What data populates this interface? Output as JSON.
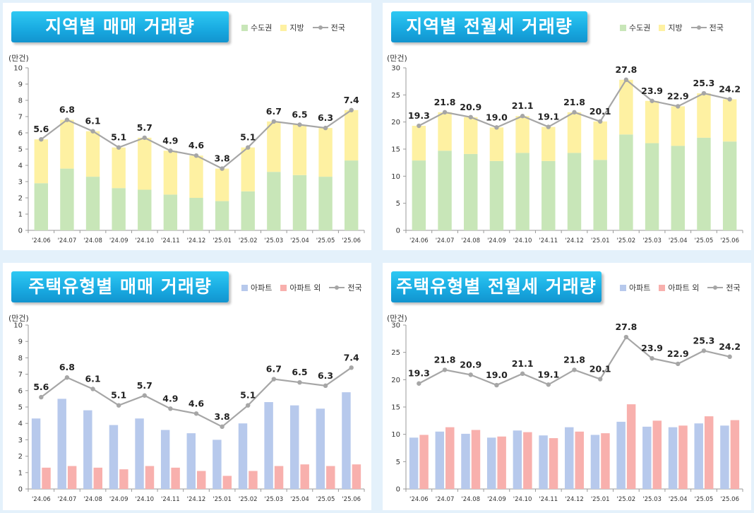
{
  "colors": {
    "metro": "#c8e6b8",
    "region": "#fef1a2",
    "apt": "#b7c9ec",
    "non_apt": "#f8b0ad",
    "national": "#a6a6a6"
  },
  "panels": [
    {
      "title": "지역별 매매 거래량",
      "unit": "(만건)",
      "legend": [
        "수도권",
        "지방",
        "전국"
      ]
    },
    {
      "title": "지역별 전월세 거래량",
      "unit": "(만건)",
      "legend": [
        "수도권",
        "지방",
        "전국"
      ]
    },
    {
      "title": "주택유형별 매매 거래량",
      "unit": "(만건)",
      "legend": [
        "아파트",
        "아파트 외",
        "전국"
      ]
    },
    {
      "title": "주택유형별 전월세 거래량",
      "unit": "(만건)",
      "legend": [
        "아파트",
        "아파트 외",
        "전국"
      ]
    }
  ],
  "chart_data": [
    {
      "type": "bar",
      "stacked": true,
      "title": "지역별 매매 거래량",
      "ylabel": "(만건)",
      "categories": [
        "'24.06",
        "'24.07",
        "'24.08",
        "'24.09",
        "'24.10",
        "'24.11",
        "'24.12",
        "'25.01",
        "'25.02",
        "'25.03",
        "'25.04",
        "'25.05",
        "'25.06"
      ],
      "ylim": [
        0,
        10
      ],
      "yticks": [
        0,
        1,
        2,
        3,
        4,
        5,
        6,
        7,
        8,
        9,
        10
      ],
      "series": [
        {
          "name": "수도권",
          "values": [
            2.9,
            3.8,
            3.3,
            2.6,
            2.5,
            2.2,
            2.0,
            1.8,
            2.4,
            3.6,
            3.4,
            3.3,
            4.3
          ]
        },
        {
          "name": "지방",
          "values": [
            2.7,
            3.0,
            2.8,
            2.5,
            3.2,
            2.7,
            2.6,
            2.0,
            2.7,
            3.1,
            3.1,
            3.0,
            3.1
          ]
        }
      ],
      "line": {
        "name": "전국",
        "values": [
          5.6,
          6.8,
          6.1,
          5.1,
          5.7,
          4.9,
          4.6,
          3.8,
          5.1,
          6.7,
          6.5,
          6.3,
          7.4
        ],
        "labels": [
          "5.6",
          "6.8",
          "6.1",
          "5.1",
          "5.7",
          "4.9",
          "4.6",
          "3.8",
          "5.1",
          "6.7",
          "6.5",
          "6.3",
          "7.4"
        ]
      }
    },
    {
      "type": "bar",
      "stacked": true,
      "title": "지역별 전월세 거래량",
      "ylabel": "(만건)",
      "categories": [
        "'24.06",
        "'24.07",
        "'24.08",
        "'24.09",
        "'24.10",
        "'24.11",
        "'24.12",
        "'25.01",
        "'25.02",
        "'25.03",
        "'25.04",
        "'25.05",
        "'25.06"
      ],
      "ylim": [
        0,
        30
      ],
      "yticks": [
        0,
        5,
        10,
        15,
        20,
        25,
        30
      ],
      "series": [
        {
          "name": "수도권",
          "values": [
            12.9,
            14.7,
            14.1,
            12.8,
            14.3,
            12.8,
            14.3,
            13.0,
            17.7,
            16.1,
            15.6,
            17.1,
            16.4
          ]
        },
        {
          "name": "지방",
          "values": [
            6.4,
            7.1,
            6.8,
            6.2,
            6.8,
            6.3,
            7.5,
            7.1,
            10.1,
            7.8,
            7.3,
            8.2,
            7.8
          ]
        }
      ],
      "line": {
        "name": "전국",
        "values": [
          19.3,
          21.8,
          20.9,
          19.0,
          21.1,
          19.1,
          21.8,
          20.1,
          27.8,
          23.9,
          22.9,
          25.3,
          24.2
        ],
        "labels": [
          "19.3",
          "21.8",
          "20.9",
          "19.0",
          "21.1",
          "19.1",
          "21.8",
          "20.1",
          "27.8",
          "23.9",
          "22.9",
          "25.3",
          "24.2"
        ]
      }
    },
    {
      "type": "bar",
      "stacked": false,
      "title": "주택유형별 매매 거래량",
      "ylabel": "(만건)",
      "categories": [
        "'24.06",
        "'24.07",
        "'24.08",
        "'24.09",
        "'24.10",
        "'24.11",
        "'24.12",
        "'25.01",
        "'25.02",
        "'25.03",
        "'25.04",
        "'25.05",
        "'25.06"
      ],
      "ylim": [
        0,
        10
      ],
      "yticks": [
        0,
        1,
        2,
        3,
        4,
        5,
        6,
        7,
        8,
        9,
        10
      ],
      "series": [
        {
          "name": "아파트",
          "values": [
            4.3,
            5.5,
            4.8,
            3.9,
            4.3,
            3.6,
            3.4,
            3.0,
            4.0,
            5.3,
            5.1,
            4.9,
            5.9
          ]
        },
        {
          "name": "아파트 외",
          "values": [
            1.3,
            1.4,
            1.3,
            1.2,
            1.4,
            1.3,
            1.1,
            0.8,
            1.1,
            1.4,
            1.5,
            1.4,
            1.5
          ]
        }
      ],
      "line": {
        "name": "전국",
        "values": [
          5.6,
          6.8,
          6.1,
          5.1,
          5.7,
          4.9,
          4.6,
          3.8,
          5.1,
          6.7,
          6.5,
          6.3,
          7.4
        ],
        "labels": [
          "5.6",
          "6.8",
          "6.1",
          "5.1",
          "5.7",
          "4.9",
          "4.6",
          "3.8",
          "5.1",
          "6.7",
          "6.5",
          "6.3",
          "7.4"
        ]
      }
    },
    {
      "type": "bar",
      "stacked": false,
      "title": "주택유형별 전월세 거래량",
      "ylabel": "(만건)",
      "categories": [
        "'24.06",
        "'24.07",
        "'24.08",
        "'24.09",
        "'24.10",
        "'24.11",
        "'24.12",
        "'25.01",
        "'25.02",
        "'25.03",
        "'25.04",
        "'25.05",
        "'25.06"
      ],
      "ylim": [
        0,
        30
      ],
      "yticks": [
        0,
        5,
        10,
        15,
        20,
        25,
        30
      ],
      "series": [
        {
          "name": "아파트",
          "values": [
            9.4,
            10.5,
            10.1,
            9.4,
            10.7,
            9.8,
            11.3,
            9.9,
            12.3,
            11.4,
            11.3,
            12.0,
            11.6
          ]
        },
        {
          "name": "아파트 외",
          "values": [
            9.9,
            11.3,
            10.8,
            9.6,
            10.4,
            9.3,
            10.5,
            10.2,
            15.5,
            12.5,
            11.6,
            13.3,
            12.6
          ]
        }
      ],
      "line": {
        "name": "전국",
        "values": [
          19.3,
          21.8,
          20.9,
          19.0,
          21.1,
          19.1,
          21.8,
          20.1,
          27.8,
          23.9,
          22.9,
          25.3,
          24.2
        ],
        "labels": [
          "19.3",
          "21.8",
          "20.9",
          "19.0",
          "21.1",
          "19.1",
          "21.8",
          "20.1",
          "27.8",
          "23.9",
          "22.9",
          "25.3",
          "24.2"
        ]
      }
    }
  ]
}
